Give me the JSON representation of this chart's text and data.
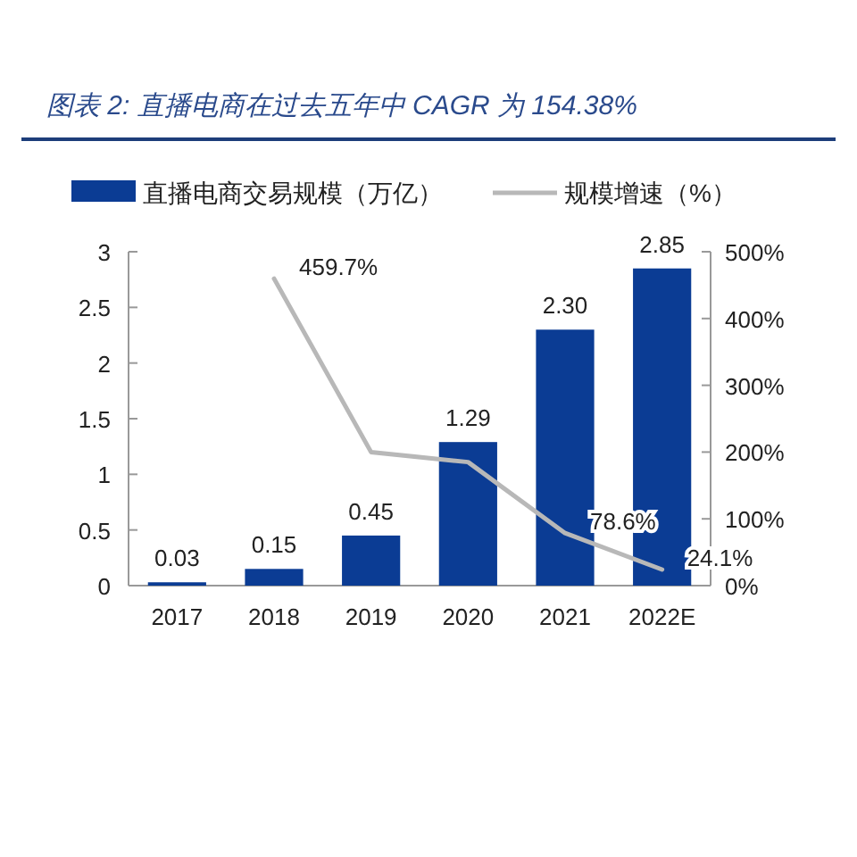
{
  "chart_data": {
    "type": "bar",
    "title": "图表 2:  直播电商在过去五年中 CAGR 为 154.38%",
    "categories": [
      "2017",
      "2018",
      "2019",
      "2020",
      "2021",
      "2022E"
    ],
    "series": [
      {
        "name": "直播电商交易规模（万亿）",
        "color": "#0b3c94",
        "values": [
          0.03,
          0.15,
          0.45,
          1.29,
          2.3,
          2.85
        ],
        "value_labels": [
          "0.03",
          "0.15",
          "0.45",
          "1.29",
          "2.30",
          "2.85"
        ]
      },
      {
        "name": "规模增速（%）",
        "type": "line",
        "axis": "y2",
        "color": "#b8b8b8",
        "values": [
          null,
          459.7,
          200,
          185,
          78.6,
          24.1
        ],
        "value_labels": [
          null,
          "459.7%",
          null,
          null,
          "78.6%",
          "24.1%"
        ]
      }
    ],
    "ylim": [
      0,
      3
    ],
    "yticks": [
      0,
      0.5,
      1,
      1.5,
      2,
      2.5,
      3
    ],
    "y2lim": [
      0,
      500
    ],
    "y2ticks": [
      {
        "value": 0,
        "label": "0%"
      },
      {
        "value": 100,
        "label": "100%"
      },
      {
        "value": 200,
        "label": "200%"
      },
      {
        "value": 300,
        "label": "300%"
      },
      {
        "value": 400,
        "label": "400%"
      },
      {
        "value": 500,
        "label": "500%"
      }
    ],
    "legend": "top",
    "grid": false
  }
}
